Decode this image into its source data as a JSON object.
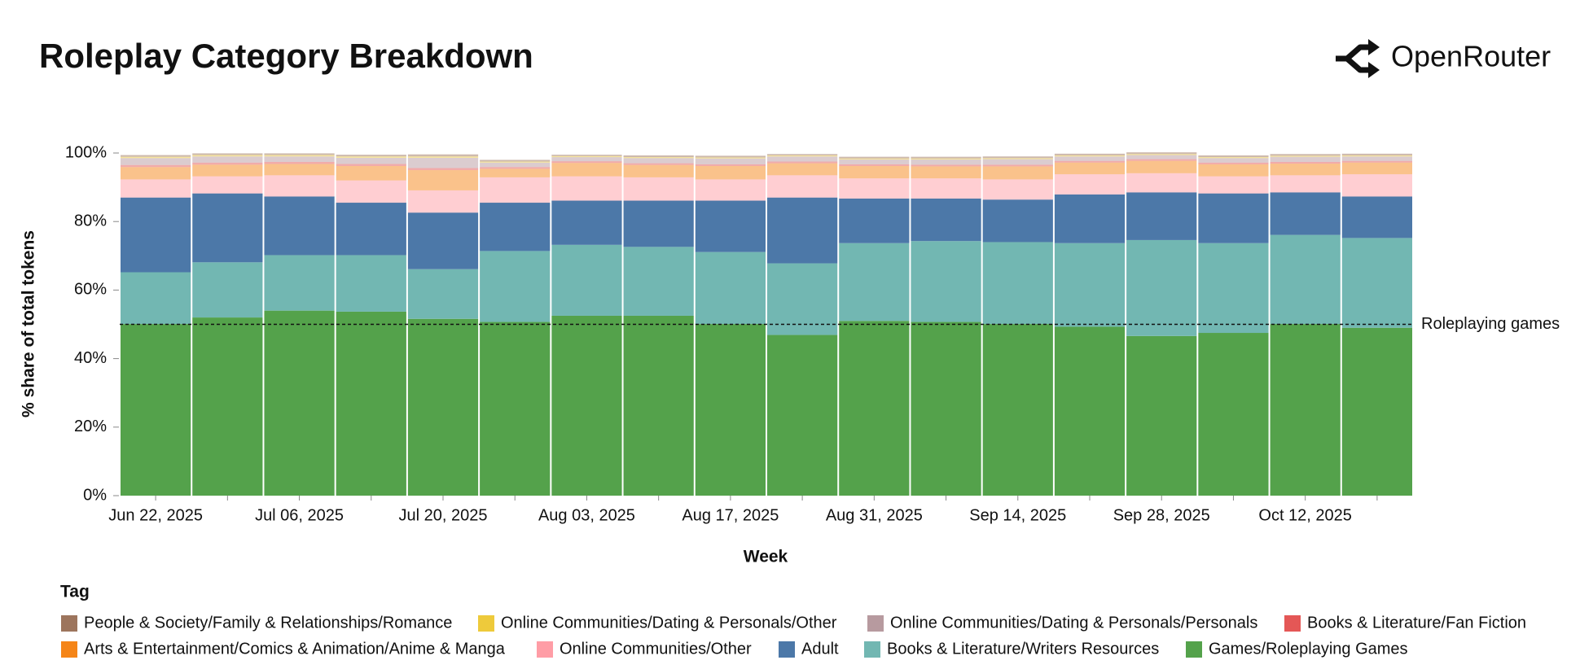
{
  "header": {
    "brand": "OpenRouter"
  },
  "chart_data": {
    "type": "stacked_bar",
    "title": "Roleplay Category Breakdown",
    "x_label": "Week",
    "y_label": "% share of total tokens",
    "legend_title": "Tag",
    "categories": [
      "Jun 22, 2025",
      null,
      "Jul 06, 2025",
      null,
      "Jul 20, 2025",
      null,
      "Aug 03, 2025",
      null,
      "Aug 17, 2025",
      null,
      "Aug 31, 2025",
      null,
      "Sep 14, 2025",
      null,
      "Sep 28, 2025",
      null,
      "Oct 12, 2025",
      null
    ],
    "ylim": [
      0,
      100
    ],
    "yticks": [
      {
        "value": 0,
        "label": "0%"
      },
      {
        "value": 20,
        "label": "20%"
      },
      {
        "value": 40,
        "label": "40%"
      },
      {
        "value": 60,
        "label": "60%"
      },
      {
        "value": 80,
        "label": "80%"
      },
      {
        "value": 100,
        "label": "100%"
      }
    ],
    "annotations": [
      {
        "y": 50,
        "text": "Roleplaying games"
      }
    ],
    "series": [
      {
        "name": "People & Society/Family & Relationships/Romance",
        "color": "#9d755d",
        "values": [
          0.5,
          0.5,
          0.5,
          0.5,
          0.6,
          0.5,
          0.4,
          0.5,
          0.5,
          0.4,
          0.5,
          0.5,
          0.5,
          0.5,
          0.5,
          0.5,
          0.5,
          0.5
        ]
      },
      {
        "name": "Online Communities/Dating & Personals/Other",
        "color": "#eeca3b",
        "values": [
          0.4,
          0.4,
          0.4,
          0.4,
          0.4,
          0.3,
          0.3,
          0.3,
          0.3,
          0.3,
          0.3,
          0.3,
          0.3,
          0.3,
          0.3,
          0.3,
          0.3,
          0.3
        ]
      },
      {
        "name": "Online Communities/Dating & Personals/Personals",
        "color": "#b79a9f",
        "values": [
          2,
          1.8,
          1.6,
          1.8,
          3,
          1.3,
          1.2,
          1.5,
          1.7,
          1.5,
          1.4,
          1.5,
          1.6,
          1.3,
          1.2,
          1.3,
          1.5,
          1.3
        ]
      },
      {
        "name": "Books & Literature/Fan Fiction",
        "color": "#e45756",
        "values": [
          0.6,
          0.6,
          0.6,
          0.6,
          0.6,
          0.5,
          0.5,
          0.5,
          0.5,
          0.5,
          0.5,
          0.5,
          0.5,
          0.5,
          0.5,
          0.5,
          0.5,
          0.5
        ]
      },
      {
        "name": "Arts & Entertainment/Comics & Animation/Anime & Manga",
        "color": "#f58518",
        "values": [
          3.6,
          3.4,
          3.3,
          4.2,
          5.9,
          2.5,
          3.9,
          3.6,
          3.9,
          3.5,
          3.6,
          3.5,
          3.8,
          3.4,
          3.6,
          3.5,
          3.4,
          3.4
        ]
      },
      {
        "name": "Online Communities/Other",
        "color": "#ff9da6",
        "values": [
          5.3,
          5,
          6.2,
          6.5,
          6.5,
          7.4,
          7.1,
          6.8,
          6.2,
          6.5,
          5.9,
          5.9,
          5.9,
          5.9,
          5.6,
          5,
          5,
          6.5
        ]
      },
      {
        "name": "Adult",
        "color": "#4c78a8",
        "values": [
          21.8,
          20.1,
          17.1,
          15.3,
          16.5,
          14.1,
          12.9,
          13.5,
          15,
          19.2,
          13,
          12.4,
          12.4,
          14.2,
          13.9,
          14.5,
          12.4,
          12.1
        ]
      },
      {
        "name": "Books & Literature/Writers Resources",
        "color": "#72b7b2",
        "values": [
          15.1,
          16.1,
          16.2,
          16.5,
          14.5,
          20.7,
          20.7,
          20.1,
          21,
          20.9,
          22.7,
          23.6,
          23.9,
          24.4,
          28,
          26.2,
          26,
          26.2
        ]
      },
      {
        "name": "Games/Roleplaying Games",
        "color": "#54a24b",
        "values": [
          50.1,
          52,
          54,
          53.7,
          51.6,
          50.7,
          52.5,
          52.5,
          50.1,
          46.9,
          51,
          50.7,
          50.1,
          49.3,
          46.6,
          47.5,
          50.1,
          49
        ]
      }
    ]
  }
}
